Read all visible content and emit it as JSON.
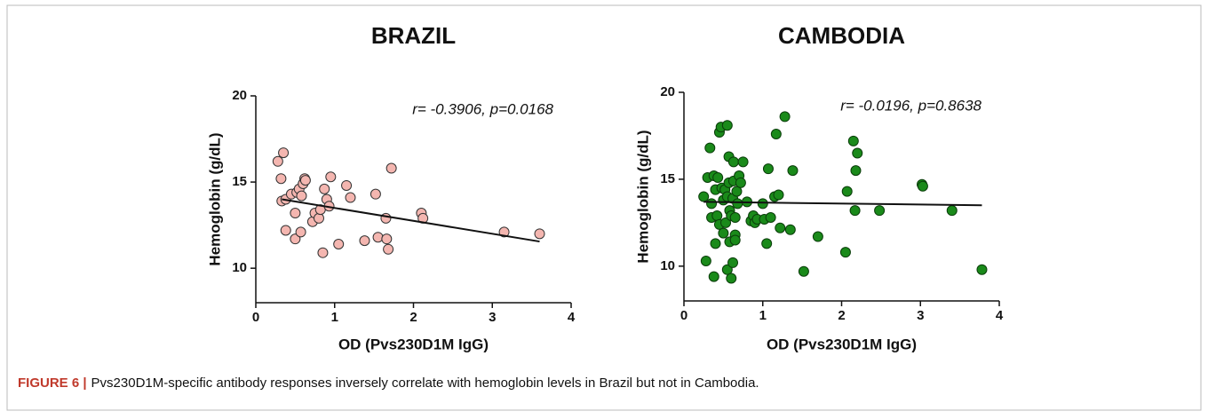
{
  "chart_data": [
    {
      "type": "scatter",
      "title": "BRAZIL",
      "x_label": "OD (Pvs230D1M IgG)",
      "y_label": "Hemoglobin (g/dL)",
      "annotation": "r= -0.3906, p=0.0168",
      "color": "#f4b6b0",
      "edge_color": "#333333",
      "xlim": [
        0,
        4
      ],
      "ylim": [
        8,
        20
      ],
      "xticks": [
        0,
        1,
        2,
        3,
        4
      ],
      "yticks": [
        10,
        15,
        20
      ],
      "x": [
        0.28,
        0.35,
        0.32,
        0.33,
        0.38,
        0.38,
        0.45,
        0.5,
        0.5,
        0.52,
        0.55,
        0.57,
        0.58,
        0.6,
        0.62,
        0.63,
        0.72,
        0.75,
        0.8,
        0.82,
        0.85,
        0.87,
        0.9,
        0.93,
        0.95,
        1.05,
        1.15,
        1.2,
        1.38,
        1.52,
        1.55,
        1.65,
        1.66,
        1.68,
        1.72,
        2.1,
        2.12,
        3.15,
        3.6
      ],
      "values": [
        16.2,
        16.7,
        15.2,
        13.9,
        14.0,
        12.2,
        14.3,
        13.2,
        11.7,
        14.4,
        14.6,
        12.1,
        14.2,
        14.9,
        15.2,
        15.1,
        12.7,
        13.2,
        12.9,
        13.4,
        10.9,
        14.6,
        14.0,
        13.6,
        15.3,
        11.4,
        14.8,
        14.1,
        11.6,
        14.3,
        11.8,
        12.9,
        11.7,
        11.1,
        15.8,
        13.2,
        12.9,
        12.1,
        12.0
      ],
      "trend_line": {
        "x": [
          0.33,
          3.6
        ],
        "y": [
          14.0,
          11.55
        ]
      }
    },
    {
      "type": "scatter",
      "title": "CAMBODIA",
      "x_label": "OD (Pvs230D1M IgG)",
      "y_label": "Hemoglobin (g/dL)",
      "annotation": "r= -0.0196, p=0.8638",
      "color": "#1a8a1a",
      "edge_color": "#0a3d0a",
      "xlim": [
        0,
        4
      ],
      "ylim": [
        8,
        20
      ],
      "xticks": [
        0,
        1,
        2,
        3,
        4
      ],
      "yticks": [
        10,
        15,
        20
      ],
      "x": [
        0.25,
        0.28,
        0.3,
        0.33,
        0.35,
        0.35,
        0.38,
        0.38,
        0.4,
        0.4,
        0.42,
        0.43,
        0.45,
        0.45,
        0.47,
        0.48,
        0.5,
        0.5,
        0.52,
        0.53,
        0.55,
        0.55,
        0.55,
        0.57,
        0.57,
        0.58,
        0.58,
        0.6,
        0.6,
        0.62,
        0.62,
        0.63,
        0.63,
        0.65,
        0.65,
        0.65,
        0.67,
        0.68,
        0.7,
        0.72,
        0.75,
        0.8,
        0.85,
        0.88,
        0.9,
        0.93,
        1.0,
        1.02,
        1.05,
        1.07,
        1.1,
        1.15,
        1.17,
        1.2,
        1.22,
        1.28,
        1.35,
        1.38,
        1.52,
        1.7,
        2.05,
        2.07,
        2.15,
        2.17,
        2.18,
        2.2,
        2.48,
        3.02,
        3.03,
        3.4,
        3.78
      ],
      "values": [
        14.0,
        10.3,
        15.1,
        16.8,
        13.6,
        12.8,
        15.2,
        9.4,
        14.4,
        11.3,
        12.9,
        15.1,
        12.4,
        17.7,
        18.0,
        14.5,
        11.9,
        13.8,
        14.4,
        12.5,
        18.1,
        14.0,
        9.8,
        16.3,
        14.8,
        13.2,
        11.4,
        12.9,
        9.3,
        10.2,
        13.9,
        16.0,
        14.9,
        12.8,
        11.8,
        11.5,
        14.3,
        13.6,
        15.2,
        14.8,
        16.0,
        13.7,
        12.6,
        12.9,
        12.5,
        12.7,
        13.6,
        12.7,
        11.3,
        15.6,
        12.8,
        14.0,
        17.6,
        14.1,
        12.2,
        18.6,
        12.1,
        15.5,
        9.7,
        11.7,
        10.8,
        14.3,
        17.2,
        13.2,
        15.5,
        16.5,
        13.2,
        14.7,
        14.6,
        13.2,
        9.8
      ],
      "trend_line": {
        "x": [
          0.25,
          3.78
        ],
        "y": [
          13.7,
          13.5
        ]
      }
    }
  ],
  "caption": {
    "label": "FIGURE 6 |",
    "text": "Pvs230D1M-specific antibody responses inversely correlate with hemoglobin levels in Brazil but not in Cambodia."
  }
}
